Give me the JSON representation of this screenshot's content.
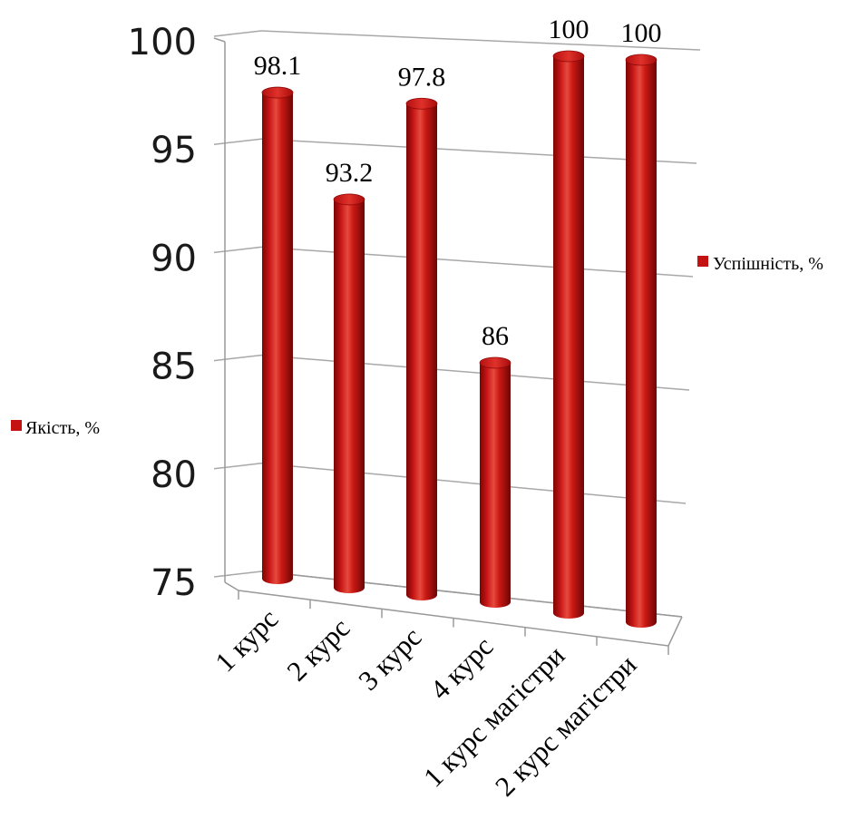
{
  "chart_data": {
    "type": "bar",
    "style": "3d-cylinder",
    "categories": [
      "1 курс",
      "2 курс",
      "3 курс",
      "4 курс",
      "1 курс магістри",
      "2 курс магістри"
    ],
    "series": [
      {
        "name": "Успішність, %",
        "color": "#c41212",
        "values": [
          98.1,
          93.2,
          97.8,
          86,
          100,
          100
        ],
        "data_labels": [
          "98.1",
          "93.2",
          "97.8",
          "86",
          "100",
          "100"
        ]
      }
    ],
    "legend": [
      {
        "label": "Якість, %",
        "color": "#c41212",
        "position": "left"
      },
      {
        "label": "Успішність, %",
        "color": "#c41212",
        "position": "right"
      }
    ],
    "ylim": [
      75,
      100
    ],
    "yticks": [
      "75",
      "80",
      "85",
      "90",
      "95",
      "100"
    ],
    "grid": true
  }
}
